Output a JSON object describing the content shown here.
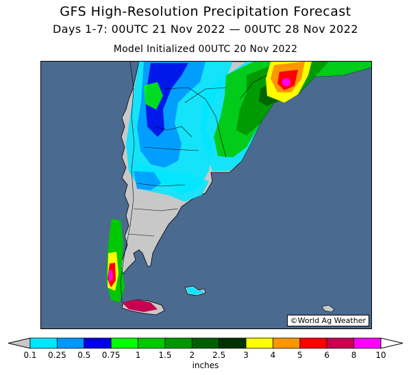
{
  "title": {
    "line1": "GFS High-Resolution Precipitation Forecast",
    "line2": "Days 1-7: 00UTC 21 Nov 2022 — 00UTC 28 Nov 2022",
    "line3": "Model Initialized 00UTC 20 Nov 2022"
  },
  "credit": "©World Ag Weather",
  "map": {
    "ocean_color": "#4a6a8f",
    "land_color": "#c8c8c8",
    "region": "Southern South America (Argentina, Chile, Uruguay, southern Brazil)"
  },
  "legend": {
    "units": "inches",
    "ticks": [
      "0.1",
      "0.25",
      "0.5",
      "0.75",
      "1",
      "1.5",
      "2",
      "2.5",
      "3",
      "4",
      "5",
      "6",
      "8",
      "10"
    ],
    "colors": [
      "#00e6ff",
      "#0096ff",
      "#0000e6",
      "#00ff00",
      "#00c800",
      "#009600",
      "#005f00",
      "#003200",
      "#ffff00",
      "#ff9600",
      "#ff0000",
      "#c80050",
      "#ff00ff",
      "#b464d2"
    ],
    "below_color": "#c8c8c8",
    "above_color": "#ffffff"
  }
}
